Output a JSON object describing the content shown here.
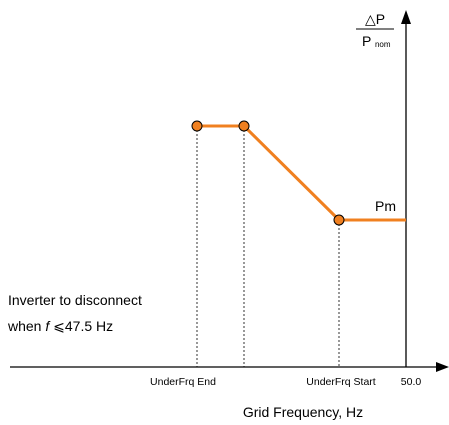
{
  "diagram": {
    "y_axis_label": {
      "numerator": "△P",
      "denominator_main": "P",
      "denominator_sub": "nom"
    },
    "x_axis_label": "Grid Frequency, Hz",
    "x_ticks": {
      "underfrq_end": "UnderFrq End",
      "underfrq_start": "UnderFrq Start",
      "nominal": "50.0"
    },
    "pm_label": "Pm",
    "note": {
      "line1": "Inverter to disconnect",
      "line2_prefix": "when ",
      "line2_var": "f",
      "line2_rest": "⩽47.5 Hz"
    },
    "colors": {
      "curve": "#F08020",
      "axes": "#000000",
      "guides": "#000000"
    },
    "curve_points": [
      "upper-left",
      "upper-right",
      "pm-point",
      "nominal-frequency"
    ]
  }
}
